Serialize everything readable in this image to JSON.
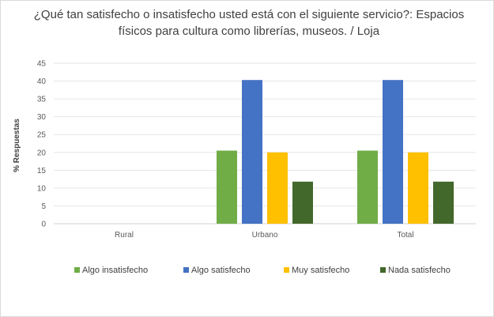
{
  "chart_data": {
    "type": "bar",
    "title": "¿Qué tan satisfecho o insatisfecho usted está con el siguiente servicio?: Espacios físicos para cultura como librerías, museos. / Loja",
    "xlabel": "",
    "ylabel": "% Respuestas",
    "ylim": [
      0,
      45
    ],
    "yticks": [
      0,
      5,
      10,
      15,
      20,
      25,
      30,
      35,
      40,
      45
    ],
    "categories": [
      "Rural",
      "Urbano",
      "Total"
    ],
    "series": [
      {
        "name": "Algo insatisfecho",
        "color": "#70ad47",
        "values": [
          0,
          20.5,
          20.5
        ]
      },
      {
        "name": "Algo satisfecho",
        "color": "#4472c4",
        "values": [
          0,
          40.3,
          40.3
        ]
      },
      {
        "name": "Muy satisfecho",
        "color": "#ffc000",
        "values": [
          0,
          20.0,
          20.0
        ]
      },
      {
        "name": "Nada satisfecho",
        "color": "#43682b",
        "values": [
          0,
          11.8,
          11.8
        ]
      }
    ],
    "grid": true,
    "legend_position": "bottom"
  }
}
